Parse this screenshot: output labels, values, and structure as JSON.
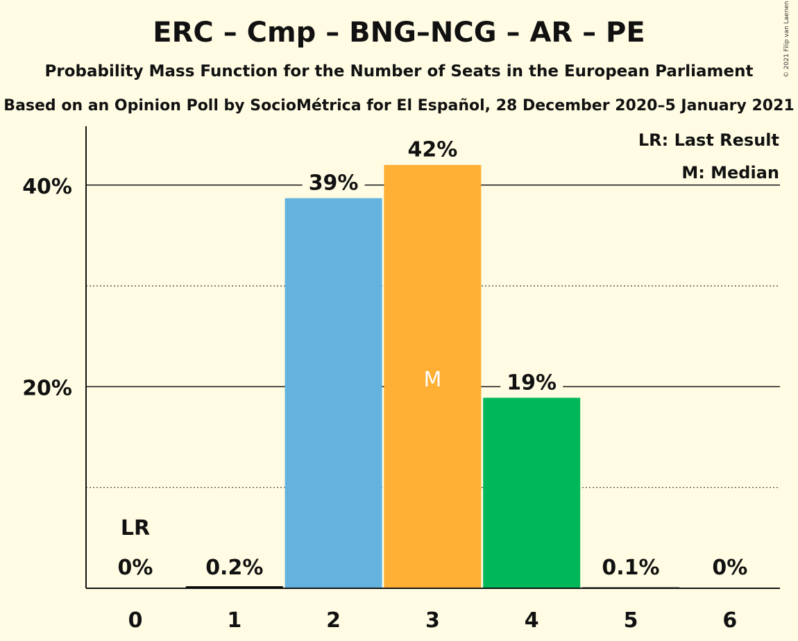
{
  "chart_data": {
    "type": "bar",
    "title": "ERC – Cmp – BNG–NCG – AR – PE",
    "subtitle": "Probability Mass Function for the Number of Seats in the European Parliament",
    "subsubtitle": "Based on an Opinion Poll by SocioMétrica for El Español, 28 December 2020–5 January 2021",
    "copyright": "© 2021 Filip van Laenen",
    "categories": [
      "0",
      "1",
      "2",
      "3",
      "4",
      "5",
      "6"
    ],
    "values": [
      0,
      0.2,
      38.7,
      42.0,
      18.9,
      0.1,
      0
    ],
    "data_labels": [
      "0%",
      "0.2%",
      "39%",
      "42%",
      "19%",
      "0.1%",
      "0%"
    ],
    "bar_colors": [
      "#000000",
      "#000000",
      "#63B3DE",
      "#FEAF34",
      "#00B85A",
      "#000000",
      "#000000"
    ],
    "last_result_index": 0,
    "median_index": 3,
    "last_result_marker": "LR",
    "median_marker": "M",
    "y_tick_labels": [
      "20%",
      "40%"
    ],
    "y_ticks": [
      20,
      40
    ],
    "y_minor_gridlines": [
      10,
      30
    ],
    "ylim": [
      0,
      46
    ],
    "legend": [
      "LR: Last Result",
      "M: Median"
    ],
    "legend_position": "top-right"
  }
}
